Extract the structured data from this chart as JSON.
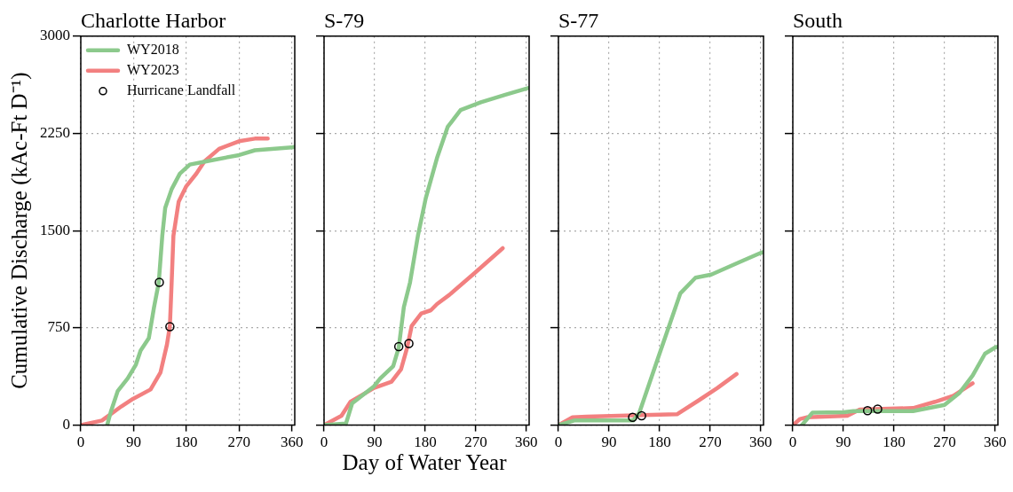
{
  "chart_data": [
    {
      "type": "line",
      "title": "Charlotte Harbor",
      "ylabel": "Cumulative Discharge (kAc-Ft D⁻¹)",
      "xlim": [
        0,
        365
      ],
      "xticks": [
        0,
        90,
        180,
        270,
        360
      ],
      "ylim": [
        0,
        3000
      ],
      "yticks": [
        0,
        750,
        1500,
        2250,
        3000
      ],
      "grid": true,
      "legend": "top left",
      "series": [
        {
          "name": "WY2018",
          "color": "#8cc98c",
          "x": [
            45,
            51,
            63,
            80,
            94,
            102,
            116,
            125,
            133,
            139,
            144,
            155,
            169,
            186,
            214,
            270,
            297,
            360,
            365
          ],
          "values": [
            0,
            100,
            263,
            360,
            467,
            575,
            670,
            910,
            1100,
            1460,
            1675,
            1820,
            1940,
            2010,
            2035,
            2083,
            2120,
            2143,
            2145
          ]
        },
        {
          "name": "WY2023",
          "color": "#f28080",
          "x": [
            0,
            36,
            47,
            69,
            89,
            119,
            136,
            147,
            152,
            155,
            158,
            167,
            180,
            197,
            211,
            236,
            270,
            297,
            319
          ],
          "values": [
            0,
            36,
            72,
            144,
            203,
            275,
            407,
            622,
            766,
            1100,
            1460,
            1724,
            1843,
            1939,
            2035,
            2131,
            2190,
            2210,
            2210
          ]
        },
        {
          "name": "Hurricane Landfall",
          "type": "scatter",
          "marker": "circle",
          "color": "#000000",
          "x": [
            134,
            152
          ],
          "values": [
            1101,
            759
          ]
        }
      ]
    },
    {
      "type": "line",
      "title": "S-79",
      "xlabel": "Day of Water Year",
      "xlim": [
        0,
        365
      ],
      "xticks": [
        0,
        90,
        180,
        270,
        360
      ],
      "ylim": [
        0,
        3000
      ],
      "yticks": [
        0,
        750,
        1500,
        2250,
        3000
      ],
      "grid": true,
      "tick_labels": "x",
      "series": [
        {
          "color": "#8cc98c",
          "x": [
            0,
            39,
            50,
            89,
            100,
            123,
            133,
            142,
            153,
            167,
            181,
            201,
            220,
            243,
            279,
            324,
            363
          ],
          "values": [
            0,
            12,
            168,
            300,
            360,
            455,
            600,
            910,
            1100,
            1460,
            1750,
            2060,
            2300,
            2430,
            2490,
            2550,
            2600
          ]
        },
        {
          "color": "#f28080",
          "x": [
            0,
            31,
            47,
            89,
            120,
            137,
            148,
            156,
            173,
            190,
            201,
            223,
            268,
            318
          ],
          "values": [
            0,
            72,
            180,
            287,
            335,
            431,
            600,
            766,
            862,
            886,
            934,
            1005,
            1173,
            1365
          ]
        },
        {
          "type": "scatter",
          "marker": "circle",
          "color": "#000000",
          "x": [
            133,
            151
          ],
          "values": [
            606,
            630
          ]
        }
      ]
    },
    {
      "type": "line",
      "title": "S-77",
      "xlim": [
        0,
        365
      ],
      "xticks": [
        0,
        90,
        180,
        270,
        360
      ],
      "ylim": [
        0,
        3000
      ],
      "yticks": [
        0,
        750,
        1500,
        2250,
        3000
      ],
      "grid": true,
      "tick_labels": "x",
      "series": [
        {
          "color": "#8cc98c",
          "x": [
            0,
            28,
            133,
            144,
            178,
            217,
            244,
            272,
            322,
            360,
            365
          ],
          "values": [
            0,
            36,
            36,
            96,
            527,
            1017,
            1137,
            1161,
            1257,
            1329,
            1335
          ]
        },
        {
          "color": "#f28080",
          "x": [
            0,
            25,
            50,
            150,
            211,
            250,
            283,
            317
          ],
          "values": [
            0,
            60,
            65,
            77,
            84,
            192,
            287,
            395
          ]
        },
        {
          "type": "scatter",
          "marker": "circle",
          "color": "#000000",
          "x": [
            132,
            148
          ],
          "values": [
            60,
            72
          ]
        }
      ]
    },
    {
      "type": "line",
      "title": "South",
      "xlim": [
        0,
        365
      ],
      "xticks": [
        0,
        90,
        180,
        270,
        360
      ],
      "ylim": [
        0,
        3000
      ],
      "yticks": [
        0,
        750,
        1500,
        2250,
        3000
      ],
      "grid": true,
      "tick_labels": "x",
      "series": [
        {
          "color": "#8cc98c",
          "x": [
            16,
            35,
            91,
            108,
            214,
            270,
            297,
            320,
            342,
            360,
            365
          ],
          "values": [
            0,
            96,
            100,
            108,
            108,
            156,
            251,
            383,
            551,
            599,
            605
          ]
        },
        {
          "color": "#f28080",
          "x": [
            0,
            13,
            24,
            97,
            119,
            214,
            253,
            286,
            320
          ],
          "values": [
            0,
            48,
            60,
            72,
            120,
            132,
            180,
            227,
            323
          ]
        },
        {
          "type": "scatter",
          "marker": "circle",
          "color": "#000000",
          "x": [
            133,
            151
          ],
          "values": [
            112,
            124
          ]
        }
      ]
    }
  ]
}
